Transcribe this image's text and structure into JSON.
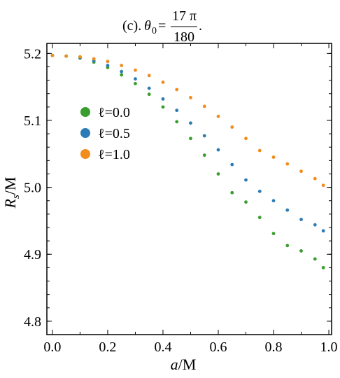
{
  "title": {
    "prefix": "(c).",
    "symbol": "θ",
    "subscript": "0",
    "equals": "=",
    "numerator": "17 π",
    "denominator": "180",
    "suffix": "."
  },
  "chart_data": {
    "type": "scatter",
    "xlabel_italic": "a",
    "xlabel_rest": "/M",
    "ylabel_main": "R",
    "ylabel_sub": "s",
    "ylabel_rest": "/M",
    "xlim": [
      -0.02,
      1.01
    ],
    "ylim": [
      4.78,
      5.215
    ],
    "xticks": [
      0.0,
      0.2,
      0.4,
      0.6,
      0.8,
      1.0
    ],
    "xtick_labels": [
      "0.0",
      "0.2",
      "0.4",
      "0.6",
      "0.8",
      "1.0"
    ],
    "yticks": [
      4.8,
      4.9,
      5.0,
      5.1,
      5.2
    ],
    "ytick_labels": [
      "4.8",
      "4.9",
      "5.0",
      "5.1",
      "5.2"
    ],
    "legend_position": "left-middle",
    "series": [
      {
        "name": "ℓ=0.0",
        "color": "#3a9e2e",
        "x": [
          0.0,
          0.05,
          0.1,
          0.15,
          0.2,
          0.25,
          0.3,
          0.35,
          0.4,
          0.45,
          0.5,
          0.55,
          0.6,
          0.65,
          0.7,
          0.75,
          0.8,
          0.85,
          0.9,
          0.95,
          0.98
        ],
        "y": [
          5.197,
          5.196,
          5.193,
          5.187,
          5.179,
          5.168,
          5.155,
          5.139,
          5.12,
          5.098,
          5.073,
          5.048,
          5.02,
          4.992,
          4.978,
          4.955,
          4.931,
          4.913,
          4.905,
          4.893,
          4.88
        ]
      },
      {
        "name": "ℓ=0.5",
        "color": "#2c7bb6",
        "x": [
          0.0,
          0.05,
          0.1,
          0.15,
          0.2,
          0.25,
          0.3,
          0.35,
          0.4,
          0.45,
          0.5,
          0.55,
          0.6,
          0.65,
          0.7,
          0.75,
          0.8,
          0.85,
          0.9,
          0.95,
          0.98
        ],
        "y": [
          5.197,
          5.196,
          5.194,
          5.189,
          5.182,
          5.173,
          5.162,
          5.148,
          5.132,
          5.115,
          5.096,
          5.077,
          5.056,
          5.034,
          5.011,
          4.994,
          4.98,
          4.966,
          4.952,
          4.944,
          4.935
        ]
      },
      {
        "name": "ℓ=1.0",
        "color": "#f28c1c",
        "x": [
          0.0,
          0.05,
          0.1,
          0.15,
          0.2,
          0.25,
          0.3,
          0.35,
          0.4,
          0.45,
          0.5,
          0.55,
          0.6,
          0.65,
          0.7,
          0.75,
          0.8,
          0.85,
          0.9,
          0.95,
          0.98
        ],
        "y": [
          5.197,
          5.196,
          5.195,
          5.192,
          5.188,
          5.182,
          5.175,
          5.167,
          5.157,
          5.146,
          5.134,
          5.121,
          5.106,
          5.09,
          5.073,
          5.055,
          5.045,
          5.035,
          5.024,
          5.013,
          5.003
        ]
      }
    ]
  }
}
